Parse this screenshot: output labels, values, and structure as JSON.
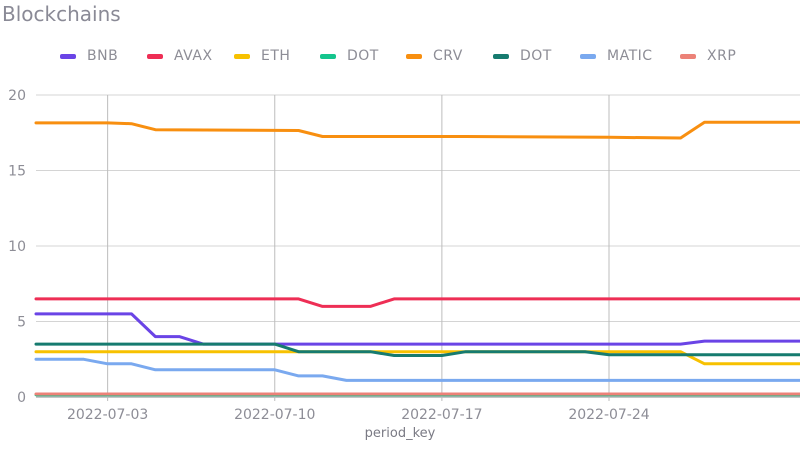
{
  "chart_data": {
    "type": "line",
    "title": "Blockchains",
    "xlabel": "period_key",
    "ylabel": "",
    "ylim": [
      0,
      20
    ],
    "yticks": [
      0,
      5,
      10,
      15,
      20
    ],
    "x_start": "2022-06-30",
    "x_end": "2022-08-01",
    "xticks": [
      "2022-07-03",
      "2022-07-10",
      "2022-07-17",
      "2022-07-24"
    ],
    "grid": true,
    "legend_position": "top",
    "series": [
      {
        "name": "BNB",
        "color": "#6a44e6",
        "points": [
          [
            "2022-06-30",
            5.5
          ],
          [
            "2022-07-04",
            5.5
          ],
          [
            "2022-07-05",
            4.0
          ],
          [
            "2022-07-06",
            4.0
          ],
          [
            "2022-07-07",
            3.5
          ],
          [
            "2022-07-27",
            3.5
          ],
          [
            "2022-07-28",
            3.7
          ],
          [
            "2022-08-01",
            3.7
          ]
        ]
      },
      {
        "name": "AVAX",
        "color": "#ee2e55",
        "points": [
          [
            "2022-06-30",
            6.5
          ],
          [
            "2022-07-11",
            6.5
          ],
          [
            "2022-07-12",
            6.0
          ],
          [
            "2022-07-14",
            6.0
          ],
          [
            "2022-07-15",
            6.5
          ],
          [
            "2022-08-01",
            6.5
          ]
        ]
      },
      {
        "name": "ETH",
        "color": "#f7c100",
        "points": [
          [
            "2022-06-30",
            3.0
          ],
          [
            "2022-07-27",
            3.0
          ],
          [
            "2022-07-28",
            2.2
          ],
          [
            "2022-08-01",
            2.2
          ]
        ]
      },
      {
        "name": "DOT",
        "color": "#14c58d",
        "points": [
          [
            "2022-06-30",
            0.15
          ],
          [
            "2022-08-01",
            0.15
          ]
        ]
      },
      {
        "name": "CRV",
        "color": "#f88f10",
        "points": [
          [
            "2022-06-30",
            18.15
          ],
          [
            "2022-07-03",
            18.15
          ],
          [
            "2022-07-04",
            18.1
          ],
          [
            "2022-07-05",
            17.7
          ],
          [
            "2022-07-11",
            17.65
          ],
          [
            "2022-07-12",
            17.25
          ],
          [
            "2022-07-18",
            17.25
          ],
          [
            "2022-07-24",
            17.2
          ],
          [
            "2022-07-27",
            17.15
          ],
          [
            "2022-07-28",
            18.2
          ],
          [
            "2022-08-01",
            18.2
          ]
        ]
      },
      {
        "name": "DOT",
        "color": "#167b6f",
        "points": [
          [
            "2022-06-30",
            3.5
          ],
          [
            "2022-07-10",
            3.5
          ],
          [
            "2022-07-11",
            3.0
          ],
          [
            "2022-07-14",
            3.0
          ],
          [
            "2022-07-15",
            2.75
          ],
          [
            "2022-07-17",
            2.75
          ],
          [
            "2022-07-18",
            3.0
          ],
          [
            "2022-07-23",
            3.0
          ],
          [
            "2022-07-24",
            2.8
          ],
          [
            "2022-08-01",
            2.8
          ]
        ]
      },
      {
        "name": "MATIC",
        "color": "#7aa9ef",
        "points": [
          [
            "2022-06-30",
            2.5
          ],
          [
            "2022-07-02",
            2.5
          ],
          [
            "2022-07-03",
            2.2
          ],
          [
            "2022-07-04",
            2.2
          ],
          [
            "2022-07-05",
            1.8
          ],
          [
            "2022-07-10",
            1.8
          ],
          [
            "2022-07-11",
            1.4
          ],
          [
            "2022-07-12",
            1.4
          ],
          [
            "2022-07-13",
            1.1
          ],
          [
            "2022-08-01",
            1.1
          ]
        ]
      },
      {
        "name": "XRP",
        "color": "#ec8278",
        "points": [
          [
            "2022-06-30",
            0.2
          ],
          [
            "2022-08-01",
            0.2
          ]
        ]
      }
    ]
  }
}
